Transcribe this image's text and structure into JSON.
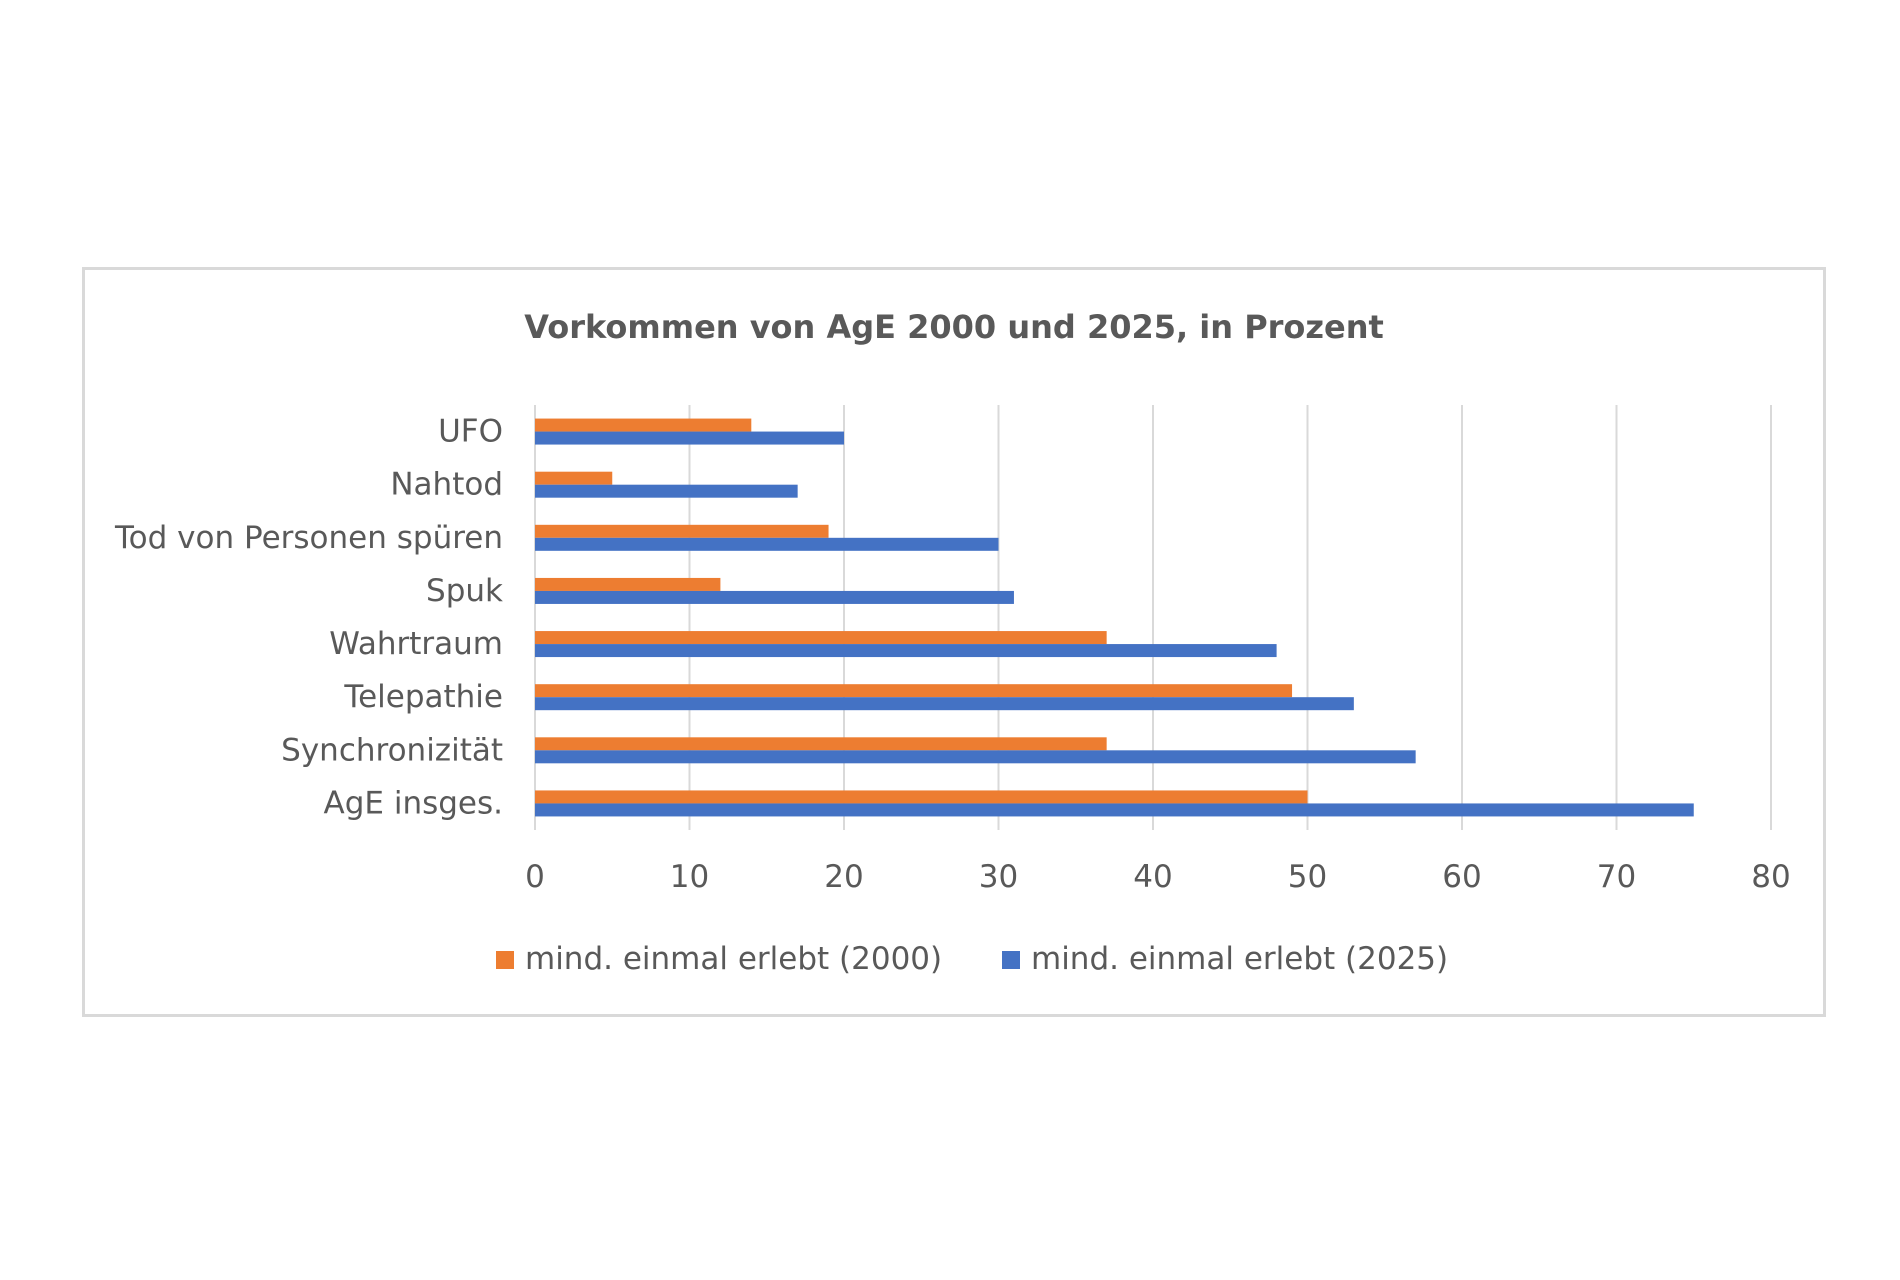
{
  "chart_data": {
    "type": "bar",
    "orientation": "horizontal",
    "title": "Vorkommen von AgE 2000 und 2025, in Prozent",
    "categories": [
      "UFO",
      "Nahtod",
      "Tod von Personen spüren",
      "Spuk",
      "Wahrtraum",
      "Telepathie",
      "Synchronizität",
      "AgE insges."
    ],
    "series": [
      {
        "name": "mind. einmal erlebt (2000)",
        "color": "#ed7d31",
        "values": [
          14,
          5,
          19,
          12,
          37,
          49,
          37,
          50
        ]
      },
      {
        "name": "mind. einmal erlebt (2025)",
        "color": "#4472c4",
        "values": [
          20,
          17,
          30,
          31,
          48,
          53,
          57,
          75
        ]
      }
    ],
    "xlim": [
      0,
      80
    ],
    "xticks": [
      0,
      10,
      20,
      30,
      40,
      50,
      60,
      70,
      80
    ],
    "grid": true,
    "legend_position": "bottom"
  }
}
